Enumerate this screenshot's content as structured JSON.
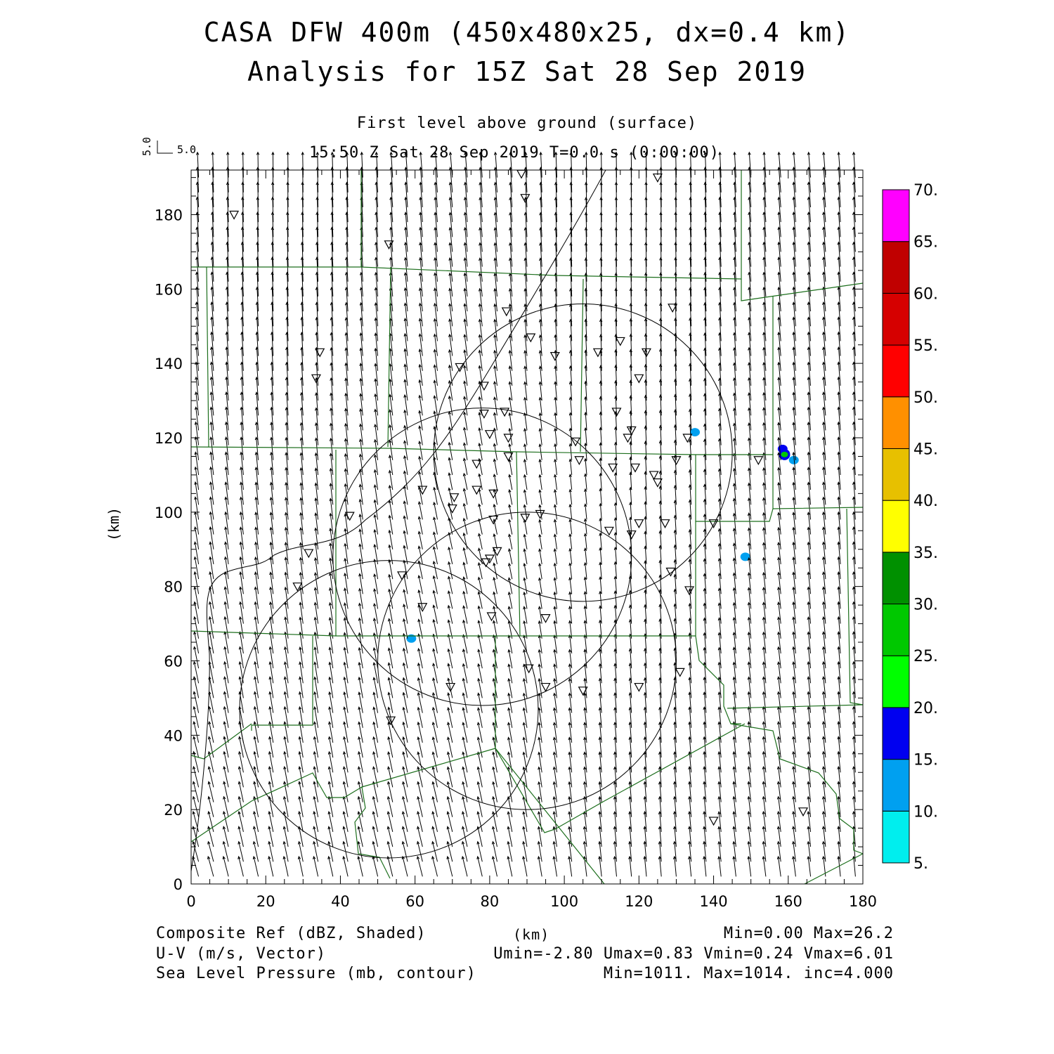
{
  "title": {
    "line1": "CASA DFW 400m (450x480x25, dx=0.4 km)",
    "line2": "Analysis for 15Z Sat 28 Sep 2019"
  },
  "subtitle": {
    "level": "First level above ground (surface)",
    "time": "15:50 Z Sat 28 Sep 2019    T=0.0 s (0:00:00)"
  },
  "vector_scale": {
    "u_label": "5.0",
    "v_label": "5.0"
  },
  "axes": {
    "y_label": "(km)",
    "x_label": "(km)",
    "x_ticks": [
      "0",
      "20",
      "40",
      "60",
      "80",
      "100",
      "120",
      "140",
      "160",
      "180"
    ],
    "y_ticks": [
      "0",
      "20",
      "40",
      "60",
      "80",
      "100",
      "120",
      "140",
      "160",
      "180"
    ]
  },
  "colorbar": {
    "labels": [
      "5.",
      "10.",
      "15.",
      "20.",
      "25.",
      "30.",
      "35.",
      "40.",
      "45.",
      "50.",
      "55.",
      "60.",
      "65.",
      "70."
    ],
    "colors": [
      "#00eeee",
      "#00a0f0",
      "#0000f0",
      "#00ff00",
      "#00c800",
      "#009000",
      "#ffff00",
      "#e7c000",
      "#ff9000",
      "#ff0000",
      "#d60000",
      "#c00000",
      "#ff00ff"
    ]
  },
  "footer": {
    "ref_label": "Composite Ref (dBZ, Shaded)",
    "ref_stats": "Min=0.00 Max=26.2",
    "vec_label": "U-V (m/s, Vector)",
    "vec_stats": "Umin=-2.80 Umax=0.83 Vmin=0.24 Vmax=6.01",
    "slp_label": "Sea Level Pressure (mb, contour)",
    "slp_stats": "Min=1011. Max=1014. inc=4.000",
    "km_label": "(km)"
  },
  "map": {
    "domain_km": {
      "x": [
        0,
        180
      ],
      "y": [
        0,
        192
      ]
    },
    "radar_rings": [
      {
        "cx": 105,
        "cy": 116,
        "r": 40
      },
      {
        "cx": 78,
        "cy": 88,
        "r": 40
      },
      {
        "cx": 90,
        "cy": 60,
        "r": 40
      },
      {
        "cx": 53,
        "cy": 47,
        "r": 40
      }
    ],
    "stations_km": [
      [
        88.5,
        191
      ],
      [
        125,
        190
      ],
      [
        89.5,
        184.5
      ],
      [
        11.5,
        180
      ],
      [
        53,
        172
      ],
      [
        84.5,
        154
      ],
      [
        129,
        155
      ],
      [
        91,
        147
      ],
      [
        34.5,
        143
      ],
      [
        115,
        146
      ],
      [
        33.5,
        136
      ],
      [
        97.5,
        142
      ],
      [
        109,
        143
      ],
      [
        122,
        143
      ],
      [
        72,
        139
      ],
      [
        120,
        136
      ],
      [
        78.5,
        134
      ],
      [
        78.5,
        126.5
      ],
      [
        84,
        127
      ],
      [
        114,
        127
      ],
      [
        80,
        121
      ],
      [
        85,
        120
      ],
      [
        118,
        122
      ],
      [
        117,
        120
      ],
      [
        133,
        120
      ],
      [
        103,
        119
      ],
      [
        85,
        115
      ],
      [
        104,
        114
      ],
      [
        130,
        114
      ],
      [
        152,
        114
      ],
      [
        76.5,
        113
      ],
      [
        113,
        112
      ],
      [
        119,
        112
      ],
      [
        124,
        110
      ],
      [
        125,
        108
      ],
      [
        62,
        106
      ],
      [
        76.5,
        106
      ],
      [
        81,
        105
      ],
      [
        70.5,
        104
      ],
      [
        70,
        101
      ],
      [
        42.5,
        99
      ],
      [
        93.5,
        99.5
      ],
      [
        89.5,
        98.5
      ],
      [
        81,
        98
      ],
      [
        140,
        97
      ],
      [
        127,
        97
      ],
      [
        120,
        97
      ],
      [
        112,
        95
      ],
      [
        118,
        94
      ],
      [
        31.5,
        89
      ],
      [
        82,
        89.5
      ],
      [
        79,
        86.5
      ],
      [
        80,
        87.5
      ],
      [
        128.5,
        84
      ],
      [
        56.5,
        83
      ],
      [
        28.5,
        80
      ],
      [
        133.5,
        79
      ],
      [
        62,
        74.5
      ],
      [
        80.5,
        72
      ],
      [
        95,
        71.5
      ],
      [
        90.5,
        58
      ],
      [
        131,
        57
      ],
      [
        69.5,
        53
      ],
      [
        120,
        53
      ],
      [
        95,
        53
      ],
      [
        105,
        52
      ],
      [
        53.5,
        44
      ],
      [
        164,
        19.5
      ],
      [
        140,
        17
      ]
    ],
    "reflectivity_km": [
      {
        "x": 59,
        "y": 66,
        "dbz": 12
      },
      {
        "x": 135,
        "y": 121.5,
        "dbz": 10
      },
      {
        "x": 148.5,
        "y": 88,
        "dbz": 12
      },
      {
        "x": 158.5,
        "y": 117,
        "dbz": 16
      },
      {
        "x": 159,
        "y": 115.5,
        "dbz": 26.2
      },
      {
        "x": 161.5,
        "y": 114,
        "dbz": 12
      }
    ]
  }
}
